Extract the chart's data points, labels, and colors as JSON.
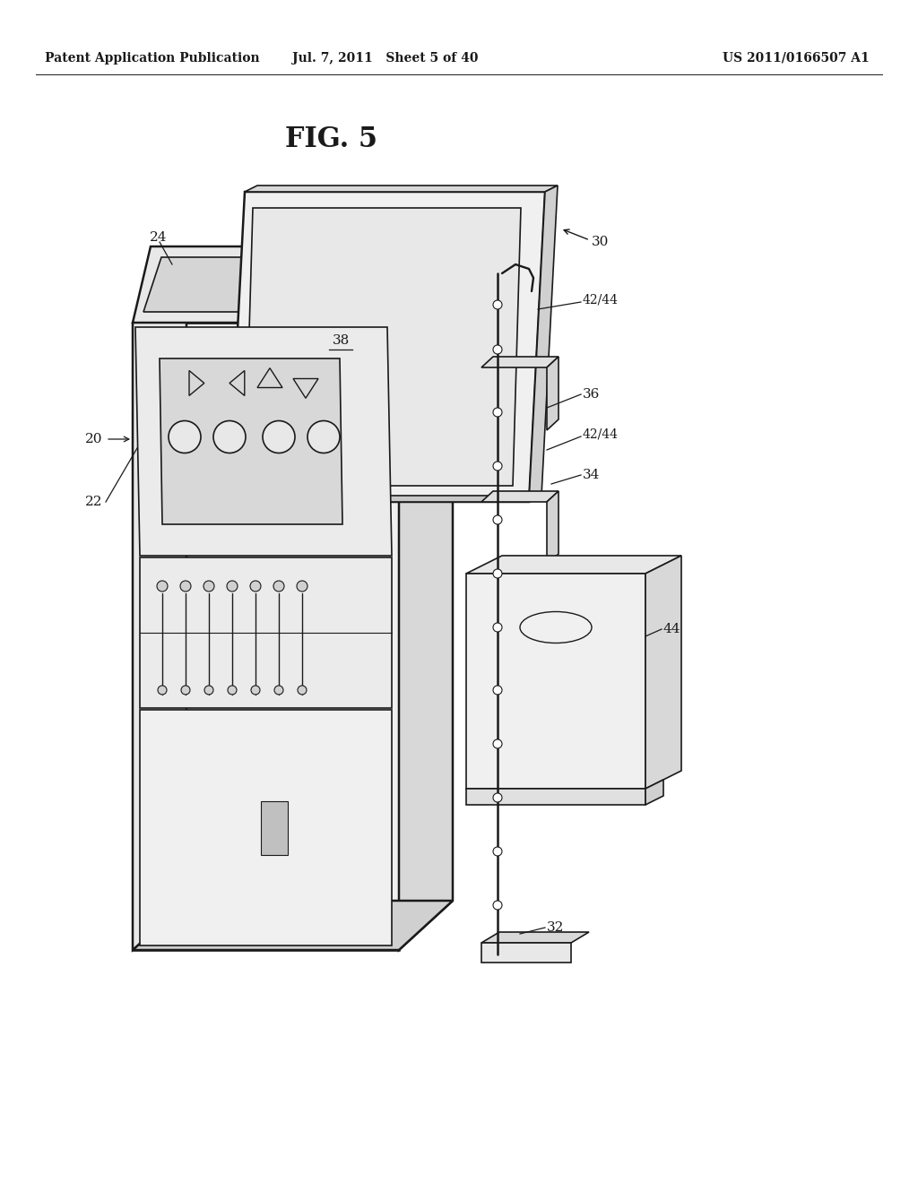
{
  "bg_color": "#ffffff",
  "header_left": "Patent Application Publication",
  "header_mid": "Jul. 7, 2011   Sheet 5 of 40",
  "header_right": "US 2011/0166507 A1",
  "fig_label": "FIG. 5",
  "line_color": "#1a1a1a",
  "label_color": "#1a1a1a",
  "header_fontsize": 10,
  "fig_label_fontsize": 22
}
